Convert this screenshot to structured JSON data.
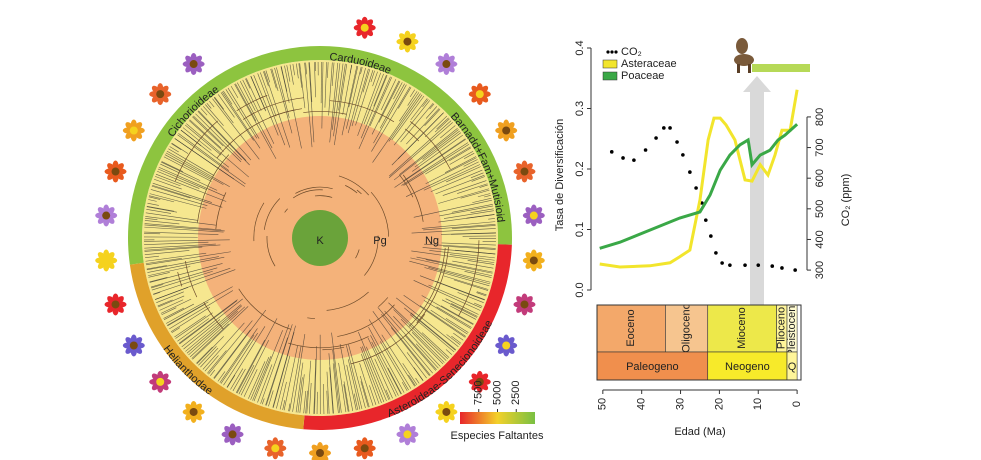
{
  "tree": {
    "clades": [
      "Cichorioideae",
      "Carduoideae",
      "Barnadd+Fam+Mutisioid",
      "Asteroideae-Senecionoideae",
      "Helianthodae"
    ],
    "ages": [
      "K",
      "Pg",
      "Ng"
    ]
  },
  "colorbar": {
    "title": "Especies Faltantes",
    "range": [
      10000,
      0
    ],
    "ticks": [
      7500,
      5000,
      2500
    ]
  },
  "chart_data": {
    "type": "line",
    "xlabel": "Edad (Ma)",
    "ylabel": "Tasa de Diversificación",
    "y2label": "CO₂ (ppm)",
    "xlim": [
      51.5,
      -1
    ],
    "xticks": [
      50,
      40,
      30,
      20,
      10,
      0
    ],
    "ylim": [
      0,
      0.4
    ],
    "yticks": [
      {
        "value": 0,
        "label": "0.0"
      },
      {
        "value": 0.1,
        "label": "0.1"
      },
      {
        "value": 0.2,
        "label": "0.2"
      },
      {
        "value": 0.3,
        "label": "0.3"
      },
      {
        "value": 0.4,
        "label": "0.4"
      }
    ],
    "y2lim": [
      235,
      1025
    ],
    "y2ticks": [
      300,
      400,
      500,
      600,
      700,
      800
    ],
    "series": [
      {
        "name": "CO₂",
        "color": "#000000",
        "style": "dotted",
        "axis": "y2",
        "x": [
          47.7,
          44.8,
          42,
          39,
          36.3,
          34.3,
          32.7,
          30.9,
          29.4,
          27.6,
          26,
          24.5,
          23.5,
          22.2,
          20.9,
          19.3,
          17.3,
          13.4,
          10,
          6.4,
          3.9,
          0.5
        ],
        "values": [
          686,
          666,
          659,
          692,
          731,
          764,
          764,
          718,
          676,
          620,
          568,
          519,
          463,
          411,
          356,
          323,
          316,
          316,
          316,
          313,
          307,
          300
        ]
      },
      {
        "name": "Asteraceae",
        "color": "#f2e52c",
        "style": "line",
        "x": [
          50.8,
          45.6,
          37.9,
          32.7,
          30.2,
          27.6,
          25,
          22.9,
          21.4,
          19.8,
          18.3,
          16,
          13.4,
          11.6,
          9.5,
          7.5,
          5.7,
          3.9,
          1.8,
          0
        ],
        "values": [
          0.043,
          0.038,
          0.04,
          0.045,
          0.055,
          0.066,
          0.149,
          0.248,
          0.284,
          0.284,
          0.273,
          0.248,
          0.182,
          0.18,
          0.207,
          0.19,
          0.223,
          0.264,
          0.264,
          0.331
        ]
      },
      {
        "name": "Poaceae",
        "color": "#3aa847",
        "style": "line",
        "x": [
          50.8,
          45.6,
          37.9,
          30.2,
          25,
          22.4,
          19.8,
          17.3,
          14.7,
          12.6,
          11.6,
          9.5,
          7,
          4.9,
          3.1,
          0
        ],
        "values": [
          0.069,
          0.079,
          0.099,
          0.119,
          0.129,
          0.157,
          0.198,
          0.223,
          0.24,
          0.248,
          0.207,
          0.223,
          0.231,
          0.248,
          0.256,
          0.274
        ]
      }
    ],
    "epochs": [
      {
        "name": "Eoceno",
        "start": 56,
        "end": 33.9,
        "color": "#f3a86a"
      },
      {
        "name": "Oligoceno",
        "start": 33.9,
        "end": 23,
        "color": "#f6c58f"
      },
      {
        "name": "Mioceno",
        "start": 23,
        "end": 5.3,
        "color": "#ede84a"
      },
      {
        "name": "Plioceno",
        "start": 5.3,
        "end": 2.6,
        "color": "#fff59a"
      },
      {
        "name": "Pleistoceno",
        "start": 2.6,
        "end": 0,
        "color": "#fffbd0"
      }
    ],
    "periods": [
      {
        "name": "Paleogeno",
        "start": 56,
        "end": 23,
        "color": "#f08f4d"
      },
      {
        "name": "Neogeno",
        "start": 23,
        "end": 2.6,
        "color": "#f7ea2a"
      },
      {
        "name": "Q",
        "start": 2.6,
        "end": 0,
        "color": "#fff59a"
      }
    ]
  }
}
